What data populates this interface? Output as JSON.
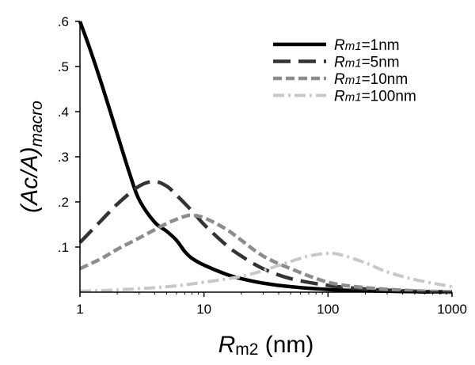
{
  "chart_data": {
    "type": "line",
    "title": "",
    "xlabel": {
      "main": "R",
      "sub": "m2",
      "suffix": " (nm)"
    },
    "ylabel": {
      "main": "(Ac/A)",
      "sub": "macro"
    },
    "xscale": "log",
    "xlim": [
      1,
      1000
    ],
    "ylim": [
      0,
      0.6
    ],
    "grid": false,
    "legend_position": "top-right",
    "xticks": [
      {
        "value": 1,
        "label": "1"
      },
      {
        "value": 10,
        "label": "10"
      },
      {
        "value": 100,
        "label": "100"
      },
      {
        "value": 1000,
        "label": "1000"
      }
    ],
    "yticks": [
      {
        "value": 0.1,
        "label": ".1"
      },
      {
        "value": 0.2,
        "label": ".2"
      },
      {
        "value": 0.3,
        "label": ".3"
      },
      {
        "value": 0.4,
        "label": ".4"
      },
      {
        "value": 0.5,
        "label": ".5"
      },
      {
        "value": 0.6,
        "label": ".6"
      }
    ],
    "series": [
      {
        "name": "Rm1=1nm",
        "legend_main": "R",
        "legend_sub": "m1",
        "legend_suffix": "=1nm",
        "color": "#000000",
        "style": "solid",
        "x": [
          1,
          1.2,
          1.5,
          2,
          2.5,
          3,
          4,
          5,
          6,
          7,
          8,
          10,
          15,
          20,
          30,
          50,
          100,
          200,
          500,
          1000
        ],
        "y": [
          0.6,
          0.54,
          0.46,
          0.35,
          0.265,
          0.205,
          0.155,
          0.135,
          0.115,
          0.09,
          0.075,
          0.06,
          0.04,
          0.03,
          0.02,
          0.012,
          0.006,
          0.003,
          0.001,
          0.0
        ]
      },
      {
        "name": "Rm1=5nm",
        "legend_main": "R",
        "legend_sub": "m1",
        "legend_suffix": "=5nm",
        "color": "#333333",
        "style": "dash",
        "x": [
          1,
          1.5,
          2,
          3,
          4,
          5,
          6,
          8,
          10,
          15,
          20,
          30,
          50,
          100,
          200,
          500,
          1000
        ],
        "y": [
          0.11,
          0.16,
          0.195,
          0.235,
          0.245,
          0.235,
          0.215,
          0.18,
          0.15,
          0.105,
          0.08,
          0.052,
          0.03,
          0.015,
          0.007,
          0.002,
          0.001
        ]
      },
      {
        "name": "Rm1=10nm",
        "legend_main": "R",
        "legend_sub": "m1",
        "legend_suffix": "=10nm",
        "color": "#8c8c8c",
        "style": "dash-short",
        "x": [
          1,
          1.5,
          2,
          3,
          5,
          7,
          8,
          10,
          15,
          20,
          30,
          50,
          100,
          200,
          500,
          1000
        ],
        "y": [
          0.052,
          0.075,
          0.095,
          0.12,
          0.152,
          0.168,
          0.17,
          0.165,
          0.14,
          0.115,
          0.08,
          0.052,
          0.022,
          0.01,
          0.003,
          0.001
        ]
      },
      {
        "name": "Rm1=100nm",
        "legend_main": "R",
        "legend_sub": "m1",
        "legend_suffix": "=100nm",
        "color": "#c8c8c8",
        "style": "dash-dot",
        "x": [
          1,
          2,
          5,
          10,
          20,
          30,
          50,
          70,
          100,
          130,
          200,
          300,
          500,
          1000
        ],
        "y": [
          0.002,
          0.005,
          0.012,
          0.022,
          0.035,
          0.048,
          0.068,
          0.08,
          0.086,
          0.082,
          0.065,
          0.045,
          0.028,
          0.012
        ]
      }
    ]
  }
}
